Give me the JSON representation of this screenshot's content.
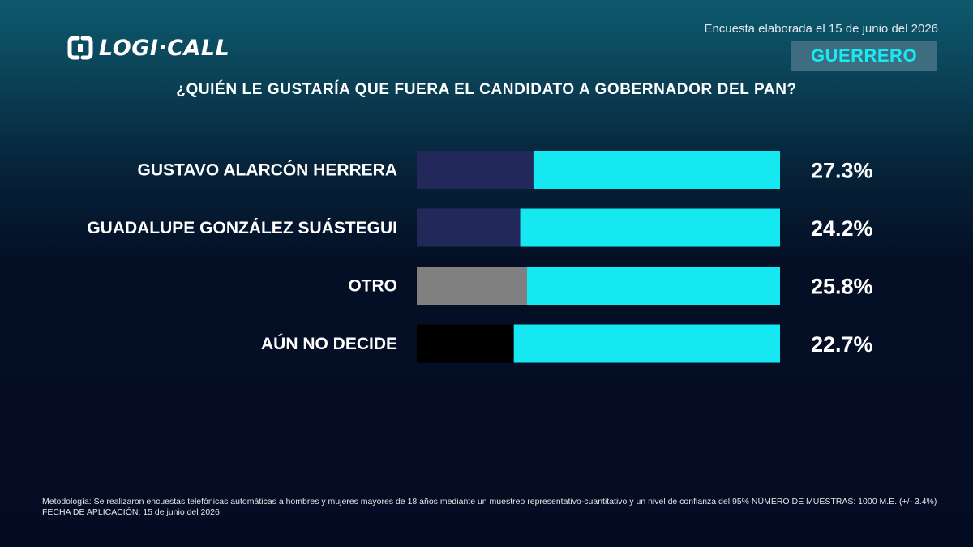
{
  "brand": {
    "name": "LOGI·CALL",
    "icon": "logicall-logo-icon"
  },
  "header": {
    "survey_date": "Encuesta elaborada el 15 de junio del 2026",
    "state": "GUERRERO",
    "question": "¿QUIÉN LE GUSTARÍA QUE FUERA EL CANDIDATO A GOBERNADOR DEL PAN?"
  },
  "colors": {
    "accent": "#16e8f2",
    "bar_blue": "#22295a",
    "bar_gray": "#808080",
    "bar_black": "#000000"
  },
  "chart_data": {
    "type": "bar",
    "orientation": "horizontal",
    "categories": [
      "GUSTAVO ALARCÓN HERRERA",
      "GUADALUPE GONZÁLEZ SUÁSTEGUI",
      "OTRO",
      "AÚN NO DECIDE"
    ],
    "values": [
      27.3,
      24.2,
      25.8,
      22.7
    ],
    "value_labels": [
      "27.3%",
      "24.2%",
      "25.8%",
      "22.7%"
    ],
    "bar_colors": [
      "#22295a",
      "#22295a",
      "#808080",
      "#000000"
    ],
    "track_color": "#16e8f2",
    "title": "",
    "xlabel": "",
    "ylabel": "",
    "xlim": [
      0,
      85
    ],
    "grid": false,
    "legend": "none"
  },
  "footer": {
    "methodology": "Metodología: Se realizaron encuestas telefónicas automáticas a hombres y mujeres mayores de 18 años mediante un muestreo representativo-cuantitativo y un nivel de confianza del 95% NÚMERO DE MUESTRAS: 1000 M.E. (+/- 3.4%)",
    "application_date": "FECHA DE APLICACIÓN: 15 de junio del 2026"
  }
}
